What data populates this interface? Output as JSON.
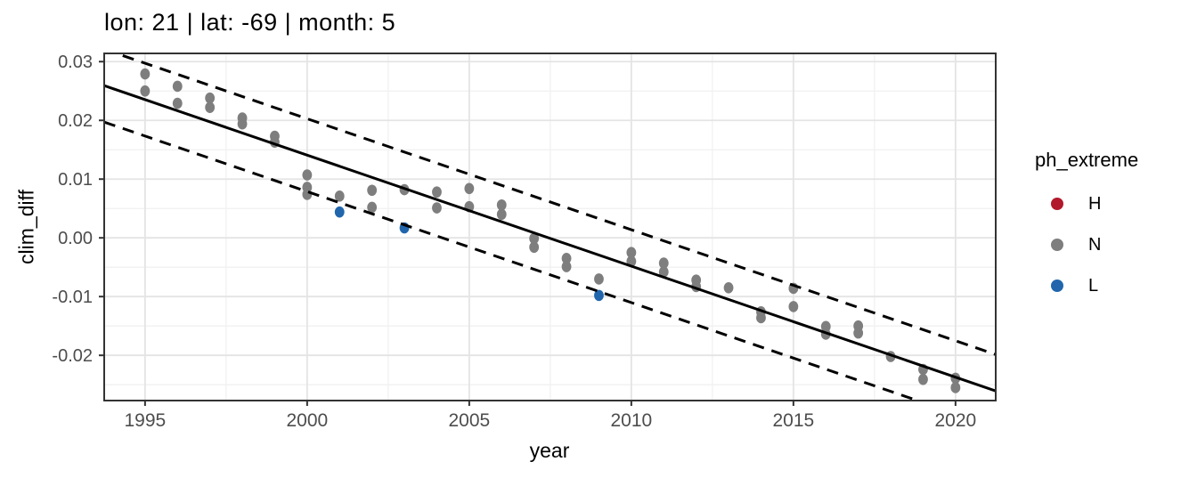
{
  "title": "lon: 21 | lat: -69 | month: 5",
  "legend": {
    "title": "ph_extreme",
    "items": [
      {
        "label": "H",
        "color": "#b2182b"
      },
      {
        "label": "N",
        "color": "#7e7e7e"
      },
      {
        "label": "L",
        "color": "#2166ac"
      }
    ]
  },
  "colors": {
    "point_N": "#7e7e7e",
    "point_L": "#2166ac",
    "point_H": "#b2182b",
    "trend_line": "#000000",
    "band_line": "#000000",
    "grid_major": "#e4e4e4",
    "grid_minor": "#f1f1f1",
    "panel_border": "#333333",
    "tick_text": "#4d4d4d",
    "panel_bg": "#ffffff"
  },
  "chart_data": {
    "type": "scatter",
    "title": "lon: 21 | lat: -69 | month: 5",
    "xlabel": "year",
    "ylabel": "clim_diff",
    "x_range": [
      1993.74,
      2021.24
    ],
    "y_range": [
      -0.0277,
      0.0314
    ],
    "grid": true,
    "legend_position": "right",
    "x_ticks": [
      {
        "v": 1995,
        "label": "1995"
      },
      {
        "v": 2000,
        "label": "2000"
      },
      {
        "v": 2005,
        "label": "2005"
      },
      {
        "v": 2010,
        "label": "2010"
      },
      {
        "v": 2015,
        "label": "2015"
      },
      {
        "v": 2020,
        "label": "2020"
      }
    ],
    "y_ticks": [
      {
        "v": 0.03,
        "label": "0.03"
      },
      {
        "v": 0.02,
        "label": "0.02"
      },
      {
        "v": 0.01,
        "label": "0.01"
      },
      {
        "v": 0.0,
        "label": "0.00"
      },
      {
        "v": -0.01,
        "label": "-0.01"
      },
      {
        "v": -0.02,
        "label": "-0.02"
      }
    ],
    "x_minor_ticks": [
      1997.5,
      2002.5,
      2007.5,
      2012.5,
      2017.5
    ],
    "y_minor_ticks": [
      0.025,
      0.015,
      0.005,
      -0.005,
      -0.015,
      -0.025
    ],
    "trend": {
      "slope_per_year": -0.00189,
      "zero_crossing_year": 2007.45,
      "band_offset": 0.0062
    },
    "points": [
      {
        "year": 1995,
        "clim_diff": 0.0279,
        "ph_extreme": "N"
      },
      {
        "year": 1995,
        "clim_diff": 0.025,
        "ph_extreme": "N"
      },
      {
        "year": 1996,
        "clim_diff": 0.0258,
        "ph_extreme": "N"
      },
      {
        "year": 1996,
        "clim_diff": 0.0229,
        "ph_extreme": "N"
      },
      {
        "year": 1997,
        "clim_diff": 0.0238,
        "ph_extreme": "N"
      },
      {
        "year": 1997,
        "clim_diff": 0.0222,
        "ph_extreme": "N"
      },
      {
        "year": 1998,
        "clim_diff": 0.0204,
        "ph_extreme": "N"
      },
      {
        "year": 1998,
        "clim_diff": 0.0194,
        "ph_extreme": "N"
      },
      {
        "year": 1999,
        "clim_diff": 0.0173,
        "ph_extreme": "N"
      },
      {
        "year": 1999,
        "clim_diff": 0.0163,
        "ph_extreme": "N"
      },
      {
        "year": 2000,
        "clim_diff": 0.0107,
        "ph_extreme": "N"
      },
      {
        "year": 2000,
        "clim_diff": 0.0086,
        "ph_extreme": "N"
      },
      {
        "year": 2000,
        "clim_diff": 0.0074,
        "ph_extreme": "N"
      },
      {
        "year": 2001,
        "clim_diff": 0.0071,
        "ph_extreme": "N"
      },
      {
        "year": 2001,
        "clim_diff": 0.0044,
        "ph_extreme": "L"
      },
      {
        "year": 2002,
        "clim_diff": 0.0081,
        "ph_extreme": "N"
      },
      {
        "year": 2002,
        "clim_diff": 0.0052,
        "ph_extreme": "N"
      },
      {
        "year": 2003,
        "clim_diff": 0.0082,
        "ph_extreme": "N"
      },
      {
        "year": 2003,
        "clim_diff": 0.0017,
        "ph_extreme": "L"
      },
      {
        "year": 2004,
        "clim_diff": 0.0078,
        "ph_extreme": "N"
      },
      {
        "year": 2004,
        "clim_diff": 0.0051,
        "ph_extreme": "N"
      },
      {
        "year": 2005,
        "clim_diff": 0.0084,
        "ph_extreme": "N"
      },
      {
        "year": 2005,
        "clim_diff": 0.0053,
        "ph_extreme": "N"
      },
      {
        "year": 2006,
        "clim_diff": 0.0056,
        "ph_extreme": "N"
      },
      {
        "year": 2006,
        "clim_diff": 0.004,
        "ph_extreme": "N"
      },
      {
        "year": 2007,
        "clim_diff": -0.0001,
        "ph_extreme": "N"
      },
      {
        "year": 2007,
        "clim_diff": -0.0016,
        "ph_extreme": "N"
      },
      {
        "year": 2008,
        "clim_diff": -0.0035,
        "ph_extreme": "N"
      },
      {
        "year": 2008,
        "clim_diff": -0.0049,
        "ph_extreme": "N"
      },
      {
        "year": 2009,
        "clim_diff": -0.007,
        "ph_extreme": "N"
      },
      {
        "year": 2009,
        "clim_diff": -0.0098,
        "ph_extreme": "L"
      },
      {
        "year": 2010,
        "clim_diff": -0.0025,
        "ph_extreme": "N"
      },
      {
        "year": 2010,
        "clim_diff": -0.004,
        "ph_extreme": "N"
      },
      {
        "year": 2011,
        "clim_diff": -0.0043,
        "ph_extreme": "N"
      },
      {
        "year": 2011,
        "clim_diff": -0.0058,
        "ph_extreme": "N"
      },
      {
        "year": 2012,
        "clim_diff": -0.0072,
        "ph_extreme": "N"
      },
      {
        "year": 2012,
        "clim_diff": -0.0083,
        "ph_extreme": "N"
      },
      {
        "year": 2013,
        "clim_diff": -0.0085,
        "ph_extreme": "N"
      },
      {
        "year": 2014,
        "clim_diff": -0.0126,
        "ph_extreme": "N"
      },
      {
        "year": 2014,
        "clim_diff": -0.0136,
        "ph_extreme": "N"
      },
      {
        "year": 2015,
        "clim_diff": -0.0086,
        "ph_extreme": "N"
      },
      {
        "year": 2015,
        "clim_diff": -0.0117,
        "ph_extreme": "N"
      },
      {
        "year": 2016,
        "clim_diff": -0.0151,
        "ph_extreme": "N"
      },
      {
        "year": 2016,
        "clim_diff": -0.0164,
        "ph_extreme": "N"
      },
      {
        "year": 2017,
        "clim_diff": -0.015,
        "ph_extreme": "N"
      },
      {
        "year": 2017,
        "clim_diff": -0.0162,
        "ph_extreme": "N"
      },
      {
        "year": 2018,
        "clim_diff": -0.0202,
        "ph_extreme": "N"
      },
      {
        "year": 2019,
        "clim_diff": -0.0224,
        "ph_extreme": "N"
      },
      {
        "year": 2019,
        "clim_diff": -0.0241,
        "ph_extreme": "N"
      },
      {
        "year": 2020,
        "clim_diff": -0.0239,
        "ph_extreme": "N"
      },
      {
        "year": 2020,
        "clim_diff": -0.0255,
        "ph_extreme": "N"
      }
    ]
  }
}
